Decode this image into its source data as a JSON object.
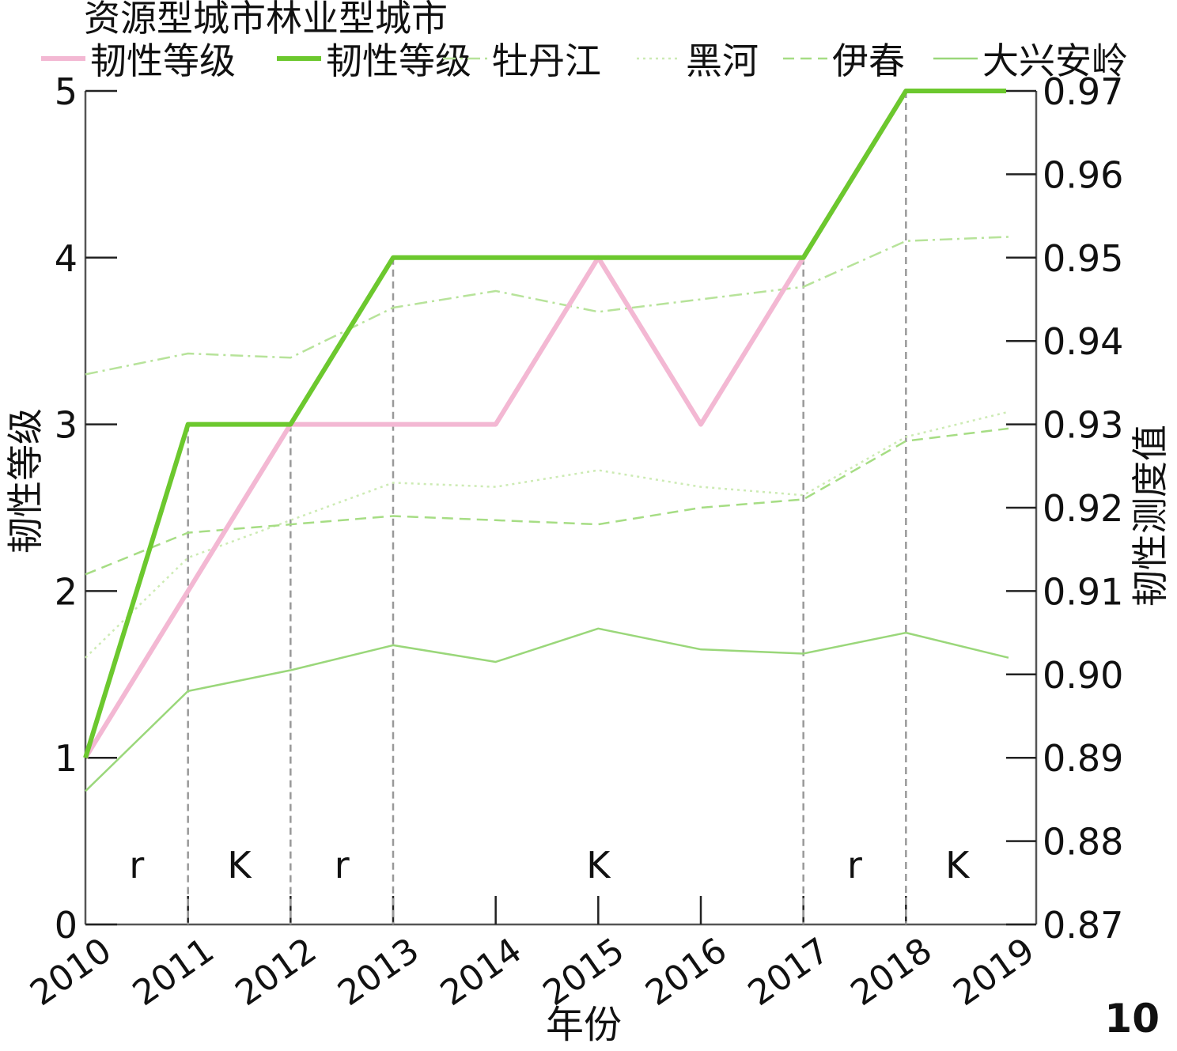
{
  "figure_label": "10",
  "chart_data": {
    "type": "line",
    "title": "",
    "xlabel": "年份",
    "ylabel": "韧性等级",
    "y2label": "韧性测度值",
    "x": [
      "2010",
      "2011",
      "2012",
      "2013",
      "2014",
      "2015",
      "2016",
      "2017",
      "2018",
      "2019"
    ],
    "ylim": [
      0,
      5
    ],
    "yticks": [
      0,
      1,
      2,
      3,
      4,
      5
    ],
    "y2lim": [
      0.87,
      0.97
    ],
    "y2ticks": [
      "0.87",
      "0.88",
      "0.89",
      "0.90",
      "0.91",
      "0.92",
      "0.93",
      "0.94",
      "0.95",
      "0.96",
      "0.97"
    ],
    "legend_title": "资源型城市林业型城市",
    "legend_position": "top",
    "series": [
      {
        "name": "韧性等级",
        "axis": "left",
        "color": "#f3b8d3",
        "style": "solid-thick",
        "values": [
          1,
          2,
          3,
          3,
          3,
          4,
          3,
          4,
          5,
          5
        ]
      },
      {
        "name": "韧性等级",
        "axis": "left",
        "color": "#6cc82e",
        "style": "solid-thick",
        "values": [
          1,
          3,
          3,
          4,
          4,
          4,
          4,
          4,
          5,
          5
        ]
      },
      {
        "name": "牡丹江",
        "axis": "right",
        "color": "#b7e39a",
        "style": "dashdot",
        "values": [
          0.936,
          0.9385,
          0.938,
          0.944,
          0.946,
          0.9435,
          0.945,
          0.9465,
          0.952,
          0.9525
        ]
      },
      {
        "name": "黑河",
        "axis": "right",
        "color": "#cdebb4",
        "style": "dotted",
        "values": [
          0.902,
          0.914,
          0.9185,
          0.923,
          0.9225,
          0.9245,
          0.9225,
          0.9215,
          0.9285,
          0.9315
        ]
      },
      {
        "name": "伊春",
        "axis": "right",
        "color": "#a6dd84",
        "style": "dashed",
        "values": [
          0.912,
          0.917,
          0.918,
          0.919,
          0.9185,
          0.918,
          0.92,
          0.921,
          0.928,
          0.9295
        ]
      },
      {
        "name": "大兴安岭",
        "axis": "right",
        "color": "#9ad77a",
        "style": "solid-thin",
        "values": [
          0.886,
          0.898,
          0.9005,
          0.9035,
          0.9015,
          0.9055,
          0.903,
          0.9025,
          0.905,
          0.902
        ]
      }
    ],
    "phases": [
      {
        "label": "r",
        "from": "2010",
        "to": "2011"
      },
      {
        "label": "K",
        "from": "2011",
        "to": "2012"
      },
      {
        "label": "r",
        "from": "2012",
        "to": "2013"
      },
      {
        "label": "K",
        "from": "2013",
        "to": "2017"
      },
      {
        "label": "r",
        "from": "2017",
        "to": "2018"
      },
      {
        "label": "K",
        "from": "2018",
        "to": "2019"
      }
    ],
    "phase_boundaries": [
      "2011",
      "2012",
      "2013",
      "2017",
      "2018"
    ],
    "grid": false
  }
}
